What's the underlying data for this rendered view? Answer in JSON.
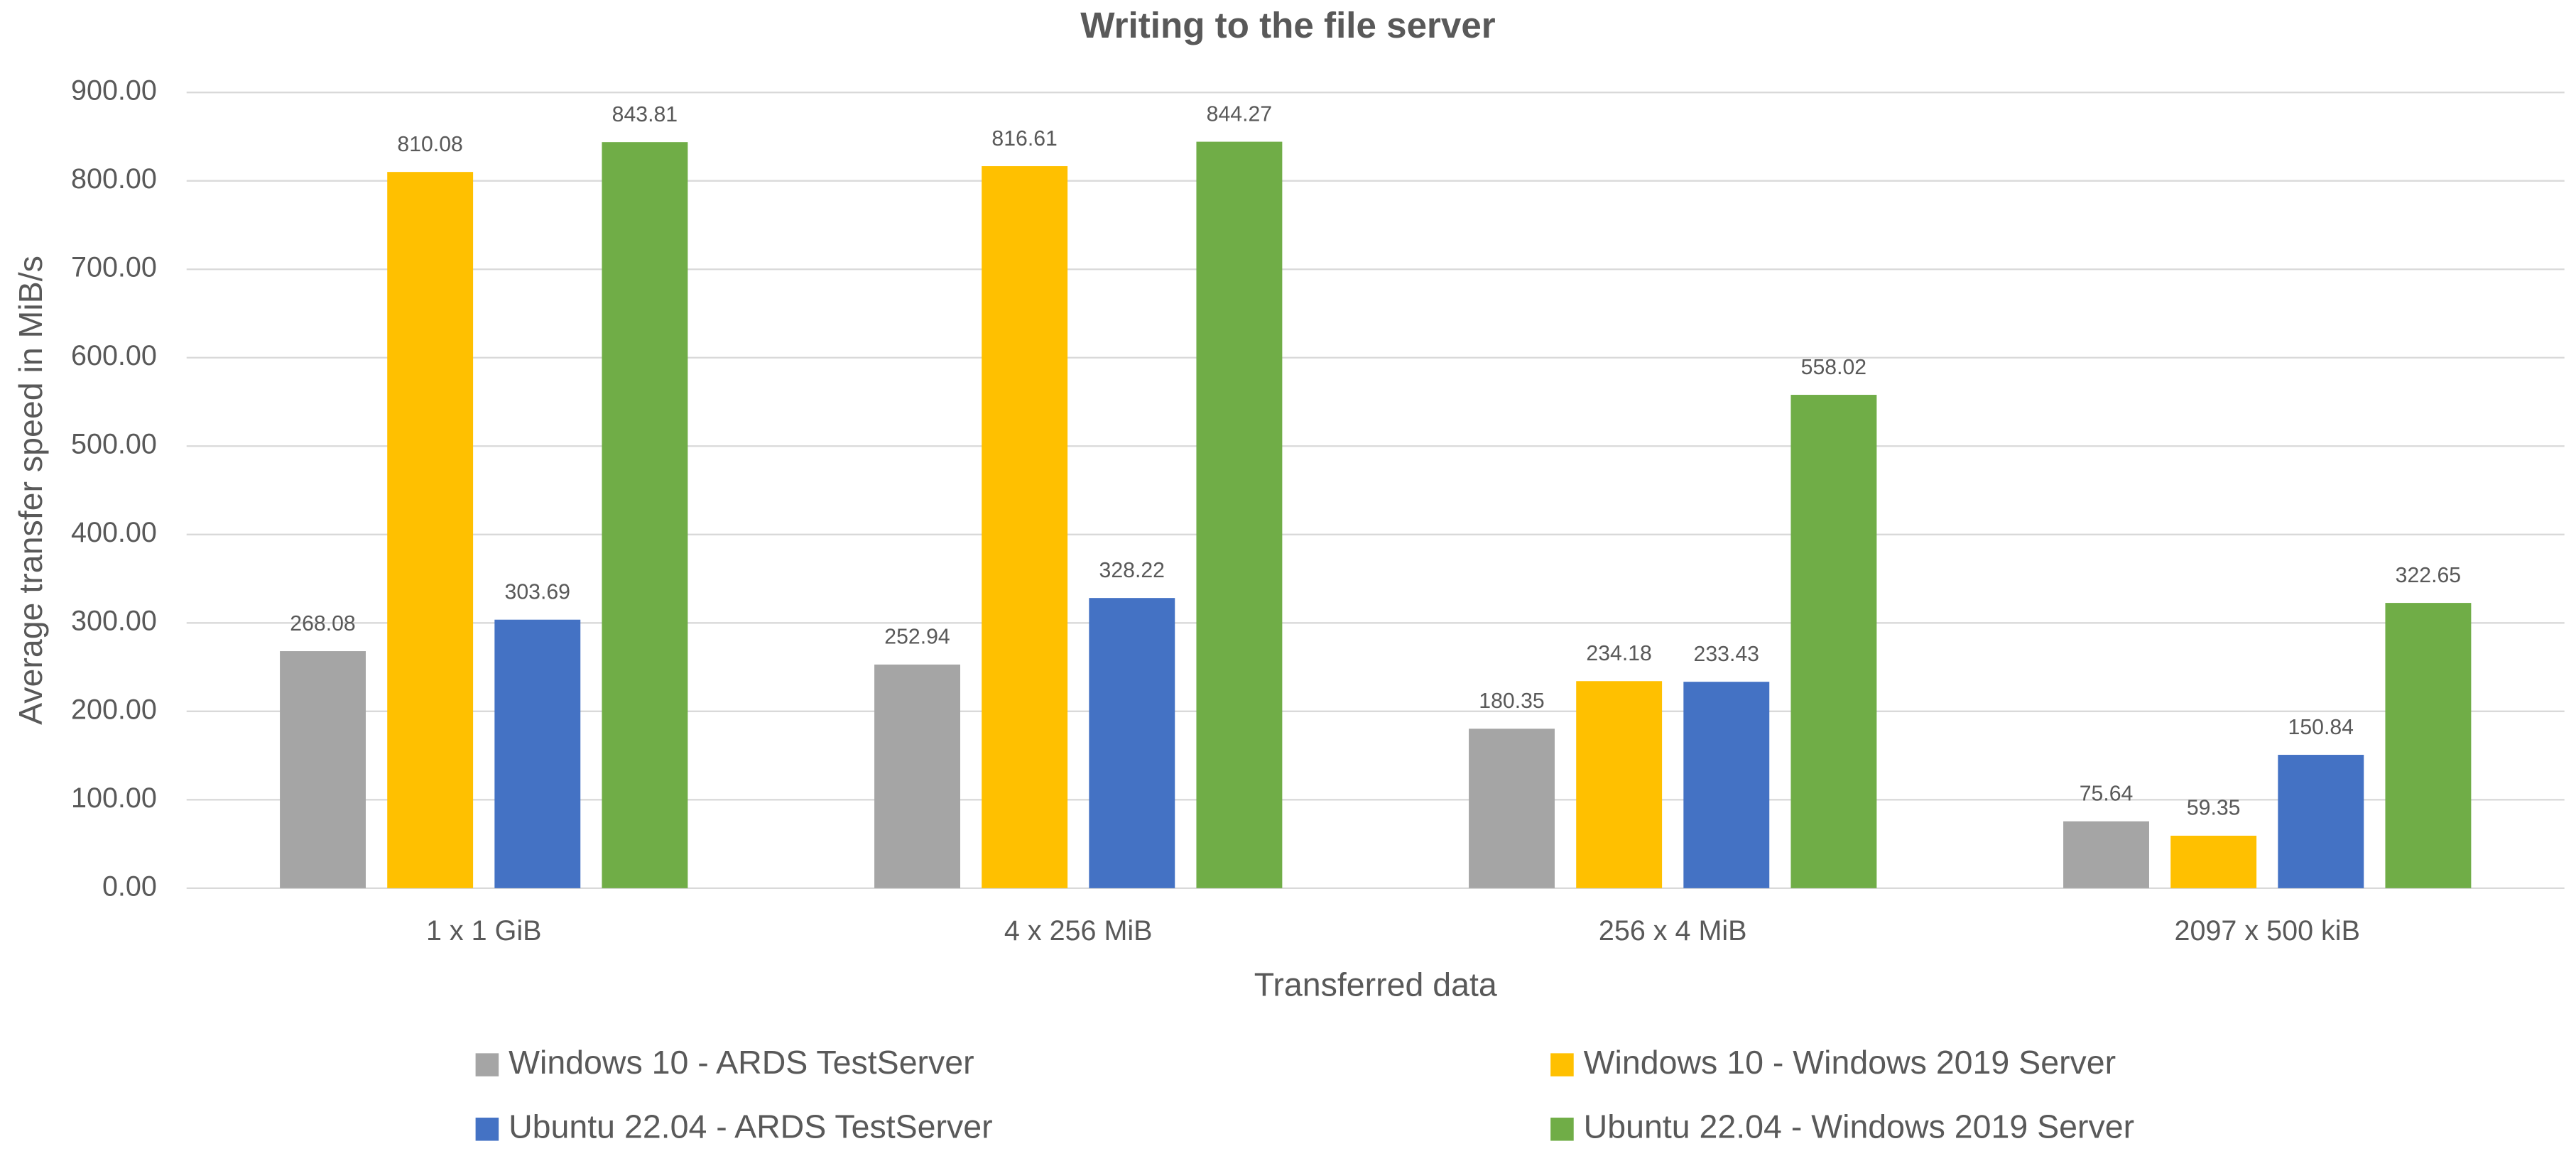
{
  "chart_data": {
    "type": "bar",
    "title": "Writing to the file server",
    "x_label": "Transferred data",
    "y_label": "Average transfer speed in MiB/s",
    "categories": [
      "1 x 1 GiB",
      "4 x 256 MiB",
      "256 x 4 MiB",
      "2097 x 500 kiB"
    ],
    "series": [
      {
        "name": "Windows 10 - ARDS TestServer",
        "color": "#a5a5a5",
        "values": [
          268.08,
          252.94,
          180.35,
          75.64
        ]
      },
      {
        "name": "Windows 10 - Windows 2019 Server",
        "color": "#ffc000",
        "values": [
          810.08,
          816.61,
          234.18,
          59.35
        ]
      },
      {
        "name": "Ubuntu 22.04 - ARDS TestServer",
        "color": "#4472c4",
        "values": [
          303.69,
          328.22,
          233.43,
          150.84
        ]
      },
      {
        "name": "Ubuntu 22.04 - Windows 2019 Server",
        "color": "#70ad47",
        "values": [
          843.81,
          844.27,
          558.02,
          322.65
        ]
      }
    ],
    "ylim": [
      0,
      900
    ],
    "yticks": [
      {
        "value": 0,
        "label": "0.00"
      },
      {
        "value": 100,
        "label": "100.00"
      },
      {
        "value": 200,
        "label": "200.00"
      },
      {
        "value": 300,
        "label": "300.00"
      },
      {
        "value": 400,
        "label": "400.00"
      },
      {
        "value": 500,
        "label": "500.00"
      },
      {
        "value": 600,
        "label": "600.00"
      },
      {
        "value": 700,
        "label": "700.00"
      },
      {
        "value": 800,
        "label": "800.00"
      },
      {
        "value": 900,
        "label": "900.00"
      }
    ],
    "grid": true,
    "legend": "bottom"
  }
}
